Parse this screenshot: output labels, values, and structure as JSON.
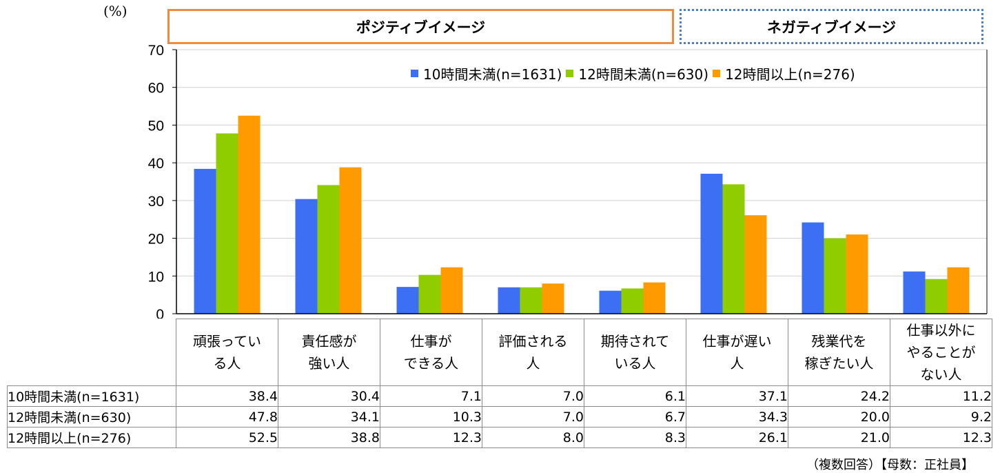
{
  "unit_label": "(%)",
  "group_labels": {
    "positive": "ポジティブイメージ",
    "negative": "ネガティブイメージ"
  },
  "footnote": "（複数回答）【母数：正社員】",
  "colors": {
    "series": [
      "#3d6ff5",
      "#8fcc00",
      "#ff9a00"
    ],
    "positive_box": "#f08a3c",
    "negative_box": "#4a7fc1",
    "grid": "#d0d0d0"
  },
  "chart_data": {
    "type": "bar",
    "ylim": [
      0,
      70
    ],
    "yticks": [
      "0",
      "10",
      "20",
      "30",
      "40",
      "50",
      "60",
      "70"
    ],
    "grid": true,
    "legend_position": "top-right",
    "categories": [
      "頑張っている人",
      "責任感が強い人",
      "仕事ができる人",
      "評価される人",
      "期待されている人",
      "仕事が遅い人",
      "残業代を稼ぎたい人",
      "仕事以外にやることがない人"
    ],
    "category_lines": [
      [
        "頑張ってい",
        "る人"
      ],
      [
        "責任感が",
        "強い人"
      ],
      [
        "仕事が",
        "できる人"
      ],
      [
        "評価される",
        "人"
      ],
      [
        "期待されて",
        "いる人"
      ],
      [
        "仕事が遅い",
        "人"
      ],
      [
        "残業代を",
        "稼ぎたい人"
      ],
      [
        "仕事以外に",
        "やることが",
        "ない人"
      ]
    ],
    "series": [
      {
        "name": "10時間未満(n=1631)",
        "values": [
          38.4,
          30.4,
          7.1,
          7.0,
          6.1,
          37.1,
          24.2,
          11.2
        ],
        "labels": [
          "38.4",
          "30.4",
          "7.1",
          "7.0",
          "6.1",
          "37.1",
          "24.2",
          "11.2"
        ]
      },
      {
        "name": "12時間未満(n=630)",
        "values": [
          47.8,
          34.1,
          10.3,
          7.0,
          6.7,
          34.3,
          20.0,
          9.2
        ],
        "labels": [
          "47.8",
          "34.1",
          "10.3",
          "7.0",
          "6.7",
          "34.3",
          "20.0",
          "9.2"
        ]
      },
      {
        "name": "12時間以上(n=276)",
        "values": [
          52.5,
          38.8,
          12.3,
          8.0,
          8.3,
          26.1,
          21.0,
          12.3
        ],
        "labels": [
          "52.5",
          "38.8",
          "12.3",
          "8.0",
          "8.3",
          "26.1",
          "21.0",
          "12.3"
        ]
      }
    ]
  }
}
